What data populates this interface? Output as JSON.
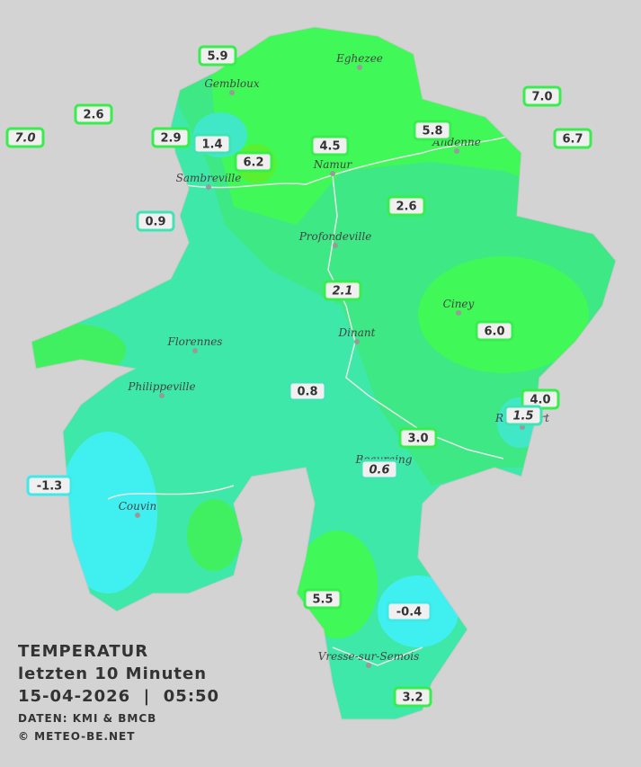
{
  "legend": {
    "title": "TEMPERATUR",
    "subtitle": "letzten 10 Minuten",
    "datetime": "15-04-2026  |  05:50",
    "source": "DATEN: KMI & BMCB",
    "copyright": "© METEO-BE.NET"
  },
  "cities": [
    "Eghezee",
    "Gembloux",
    "Andenne",
    "Namur",
    "Sambreville",
    "Profondeville",
    "Ciney",
    "Dinant",
    "Florennes",
    "Philippeville",
    "Rochefort",
    "Beauraing",
    "Couvin",
    "Vresse-sur-Semois"
  ],
  "stations": [
    {
      "value": 5.9,
      "label": "5.9",
      "color": "#38ee4c",
      "italic": false
    },
    {
      "value": 2.6,
      "label": "2.6",
      "color": "#38ee4c",
      "italic": false
    },
    {
      "value": 7.0,
      "label": "7.0",
      "color": "#38ee4c",
      "italic": true
    },
    {
      "value": 2.9,
      "label": "2.9",
      "color": "#38ee4c",
      "italic": false
    },
    {
      "value": 1.4,
      "label": "1.4",
      "color": "#40e4b4",
      "italic": false
    },
    {
      "value": 6.2,
      "label": "6.2",
      "color": "#38ee4c",
      "italic": false
    },
    {
      "value": 4.5,
      "label": "4.5",
      "color": "#38ee4c",
      "italic": false
    },
    {
      "value": 5.8,
      "label": "5.8",
      "color": "#38ee4c",
      "italic": false
    },
    {
      "value": 7.0,
      "label": "7.0",
      "color": "#38ee4c",
      "italic": false
    },
    {
      "value": 6.7,
      "label": "6.7",
      "color": "#38ee4c",
      "italic": false
    },
    {
      "value": 0.9,
      "label": "0.9",
      "color": "#40e4b4",
      "italic": false
    },
    {
      "value": 2.6,
      "label": "2.6",
      "color": "#38ee4c",
      "italic": false
    },
    {
      "value": 2.1,
      "label": "2.1",
      "color": "#38ee4c",
      "italic": true
    },
    {
      "value": 6.0,
      "label": "6.0",
      "color": "#38ee4c",
      "italic": false
    },
    {
      "value": 0.8,
      "label": "0.8",
      "color": "#40e4b4",
      "italic": false
    },
    {
      "value": 4.0,
      "label": "4.0",
      "color": "#38ee4c",
      "italic": false
    },
    {
      "value": 1.5,
      "label": "1.5",
      "color": "#40e4b4",
      "italic": true
    },
    {
      "value": 3.0,
      "label": "3.0",
      "color": "#38ee4c",
      "italic": false
    },
    {
      "value": 0.6,
      "label": "0.6",
      "color": "#40e4b4",
      "italic": true
    },
    {
      "value": -1.3,
      "label": "-1.3",
      "color": "#40e8e8",
      "italic": false
    },
    {
      "value": 5.5,
      "label": "5.5",
      "color": "#38ee4c",
      "italic": false
    },
    {
      "value": -0.4,
      "label": "-0.4",
      "color": "#40e8e8",
      "italic": false
    },
    {
      "value": 3.2,
      "label": "3.2",
      "color": "#38ee4c",
      "italic": false
    }
  ]
}
